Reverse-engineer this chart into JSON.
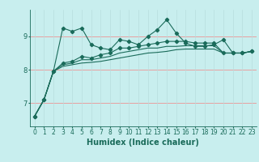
{
  "xlabel": "Humidex (Indice chaleur)",
  "ylabel": "",
  "bg_color": "#c8eeee",
  "line_color": "#1a6b5a",
  "grid_color_h": "#e8a0a0",
  "grid_color_v": "#b8dede",
  "x": [
    0,
    1,
    2,
    3,
    4,
    5,
    6,
    7,
    8,
    9,
    10,
    11,
    12,
    13,
    14,
    15,
    16,
    17,
    18,
    19,
    20,
    21,
    22,
    23
  ],
  "series1": [
    6.6,
    7.1,
    7.95,
    9.25,
    9.15,
    9.25,
    8.75,
    8.65,
    8.6,
    8.9,
    8.85,
    8.75,
    9.0,
    9.2,
    9.5,
    9.1,
    8.8,
    8.7,
    8.7,
    8.75,
    8.9,
    8.5,
    8.5,
    8.55
  ],
  "series2": [
    6.6,
    7.1,
    7.95,
    8.2,
    8.25,
    8.4,
    8.35,
    8.45,
    8.5,
    8.65,
    8.65,
    8.7,
    8.75,
    8.8,
    8.85,
    8.85,
    8.85,
    8.8,
    8.8,
    8.8,
    8.5,
    8.5,
    8.5,
    8.55
  ],
  "series3": [
    6.6,
    7.1,
    7.95,
    8.15,
    8.2,
    8.3,
    8.3,
    8.35,
    8.4,
    8.5,
    8.55,
    8.6,
    8.65,
    8.65,
    8.7,
    8.7,
    8.72,
    8.72,
    8.72,
    8.72,
    8.5,
    8.5,
    8.5,
    8.55
  ],
  "series4": [
    6.6,
    7.1,
    7.95,
    8.1,
    8.15,
    8.2,
    8.22,
    8.25,
    8.3,
    8.35,
    8.4,
    8.45,
    8.5,
    8.52,
    8.55,
    8.6,
    8.62,
    8.62,
    8.62,
    8.62,
    8.5,
    8.5,
    8.5,
    8.55
  ],
  "yticks": [
    7,
    8,
    9
  ],
  "ylim": [
    6.3,
    9.8
  ],
  "xlim": [
    -0.5,
    23.5
  ],
  "tick_fontsize": 5.5,
  "label_fontsize": 7
}
